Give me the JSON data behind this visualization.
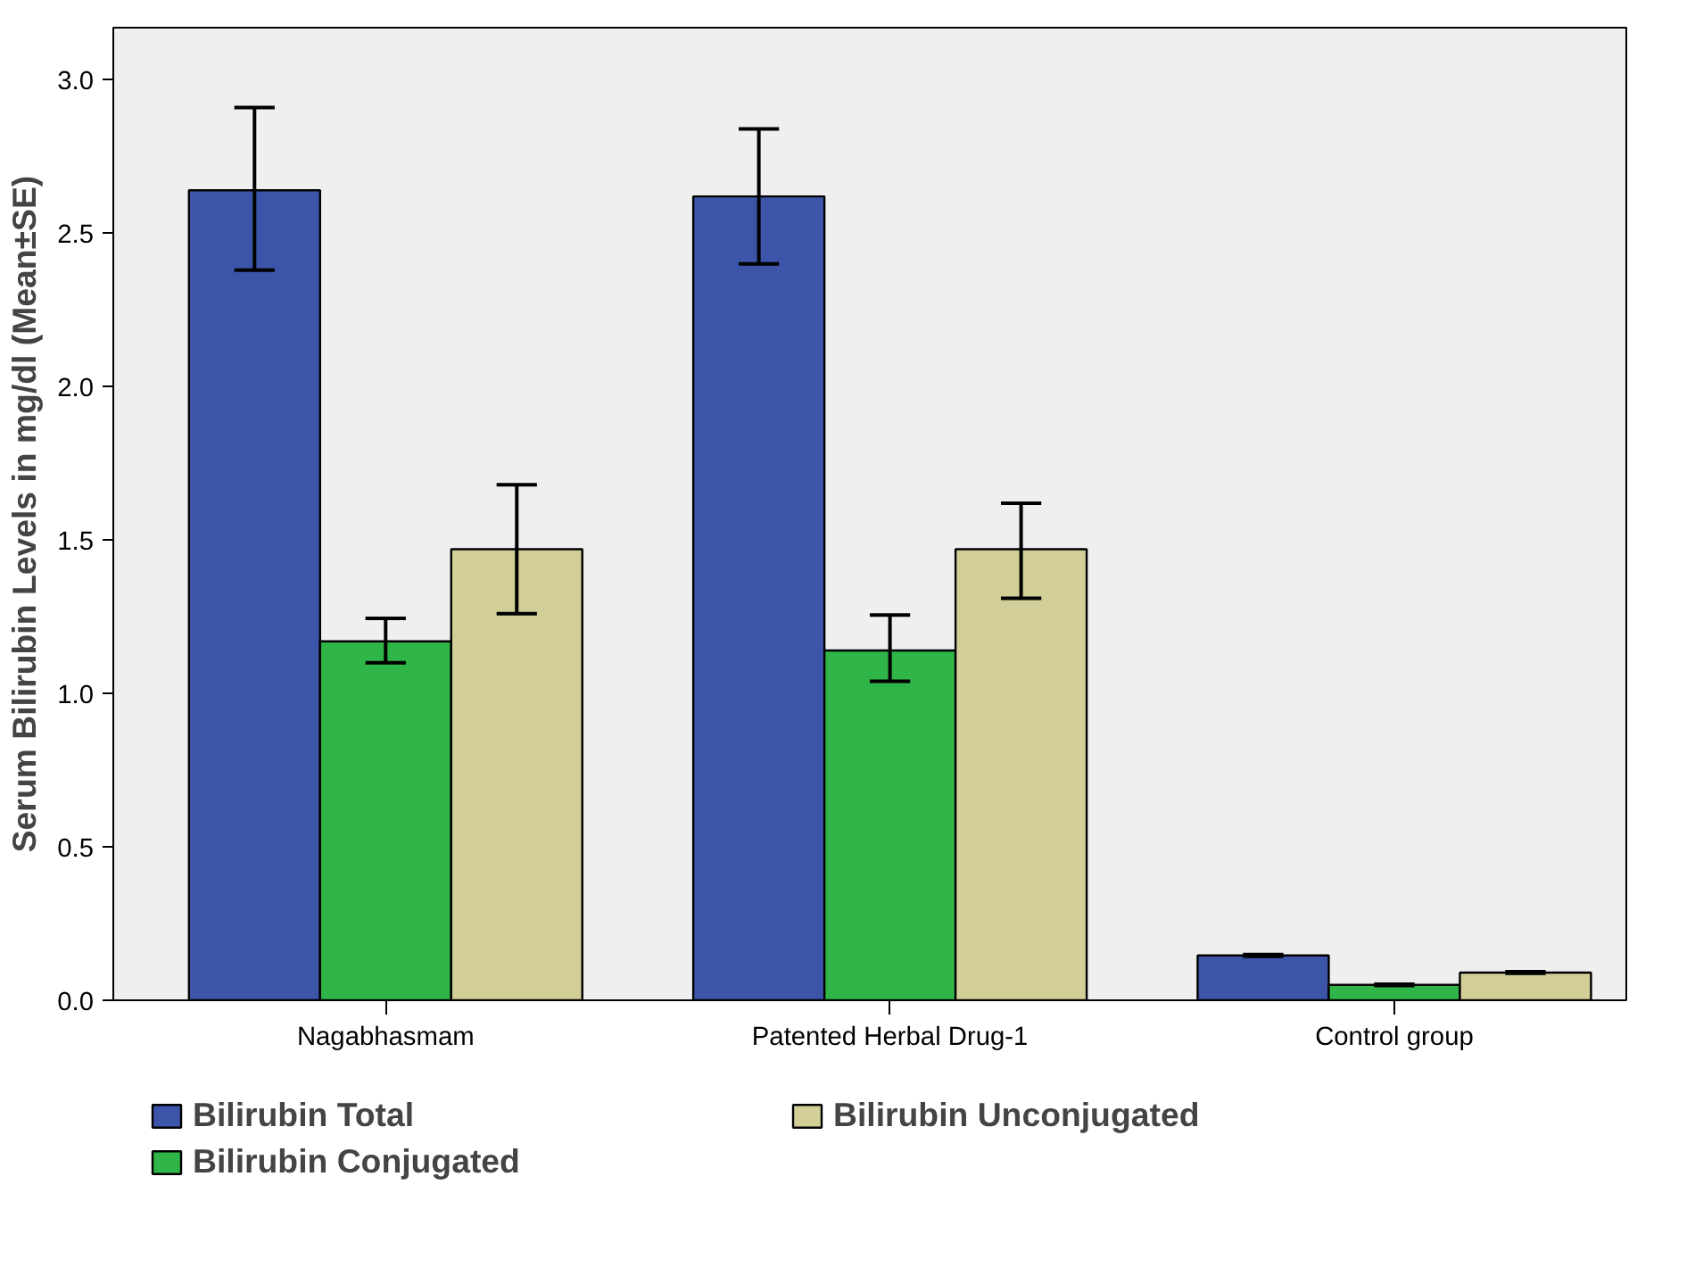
{
  "chart_data": {
    "type": "bar",
    "ylabel": "Serum Bilirubin Levels in mg/dl (Mean±SE)",
    "categories": [
      "Nagabhasmam",
      "Patented Herbal Drug-1",
      "Control group"
    ],
    "series": [
      {
        "name": "Bilirubin Total",
        "color": "#3d55a8",
        "values": [
          2.64,
          2.62,
          0.146
        ],
        "errors": [
          [
            2.38,
            2.91
          ],
          [
            2.4,
            2.84
          ],
          [
            0.143,
            0.149
          ]
        ]
      },
      {
        "name": "Bilirubin Conjugated",
        "color": "#2fb548",
        "values": [
          1.17,
          1.14,
          0.05
        ],
        "errors": [
          [
            1.1,
            1.245
          ],
          [
            1.04,
            1.256
          ],
          [
            0.048,
            0.052
          ]
        ]
      },
      {
        "name": "Bilirubin Unconjugated",
        "color": "#d3cf98",
        "values": [
          1.47,
          1.47,
          0.09
        ],
        "errors": [
          [
            1.26,
            1.68
          ],
          [
            1.31,
            1.62
          ],
          [
            0.088,
            0.093
          ]
        ]
      }
    ],
    "ylim": [
      0,
      3.17
    ],
    "yticks": [
      {
        "value": 0,
        "label": "0.0"
      },
      {
        "value": 0.5,
        "label": "0.5"
      },
      {
        "value": 1.0,
        "label": "1.0"
      },
      {
        "value": 1.5,
        "label": "1.5"
      },
      {
        "value": 2.0,
        "label": "2.0"
      },
      {
        "value": 2.5,
        "label": "2.5"
      },
      {
        "value": 3.0,
        "label": "3.0"
      }
    ],
    "grid": false,
    "legend": "bottom"
  }
}
